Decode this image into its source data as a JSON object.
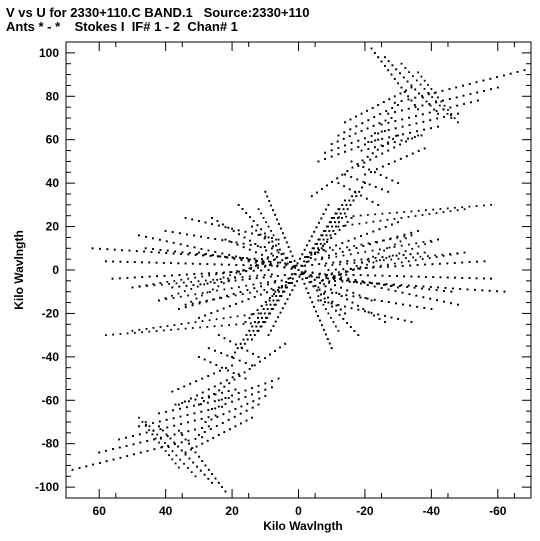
{
  "header": {
    "line1": "V vs U for 2330+110.C BAND.1   Source:2330+110",
    "line2": "Ants * - *    Stokes I  IF# 1 - 2  Chan# 1"
  },
  "chart_data": {
    "type": "scatter",
    "xlabel": "Kilo Wavlngth",
    "ylabel": "Kilo Wavlngth",
    "xlim": [
      70,
      -70
    ],
    "ylim": [
      -105,
      105
    ],
    "xticks": [
      60,
      40,
      20,
      0,
      -20,
      -40,
      -60
    ],
    "yticks": [
      100,
      80,
      60,
      40,
      20,
      0,
      -20,
      -40,
      -60,
      -80,
      -100
    ],
    "xtick_labels": [
      "60",
      "40",
      "20",
      "0",
      "-20",
      "-40",
      "-60"
    ],
    "ytick_labels": [
      "100",
      "80",
      "60",
      "40",
      "20",
      "0",
      "-20",
      "-40",
      "-60",
      "-80",
      "-100"
    ],
    "grid": false,
    "marker_color": "#000000",
    "tracks": [
      {
        "from": [
          -29,
          77
        ],
        "to": [
          -68,
          92
        ]
      },
      {
        "from": [
          -27,
          72
        ],
        "to": [
          -60,
          84
        ]
      },
      {
        "from": [
          -25,
          67
        ],
        "to": [
          -54,
          78
        ]
      },
      {
        "from": [
          -23,
          63
        ],
        "to": [
          -48,
          72
        ]
      },
      {
        "from": [
          -21,
          59
        ],
        "to": [
          -42,
          66
        ]
      },
      {
        "from": [
          -19,
          55
        ],
        "to": [
          -37,
          62
        ]
      },
      {
        "from": [
          -22,
          102
        ],
        "to": [
          -36,
          74
        ]
      },
      {
        "from": [
          -26,
          98
        ],
        "to": [
          -42,
          72
        ]
      },
      {
        "from": [
          -31,
          95
        ],
        "to": [
          -46,
          70
        ]
      },
      {
        "from": [
          -36,
          91
        ],
        "to": [
          -48,
          68
        ]
      },
      {
        "from": [
          -14,
          68
        ],
        "to": [
          -34,
          84
        ]
      },
      {
        "from": [
          -12,
          62
        ],
        "to": [
          -30,
          76
        ]
      },
      {
        "from": [
          -10,
          58
        ],
        "to": [
          -28,
          70
        ]
      },
      {
        "from": [
          -8,
          54
        ],
        "to": [
          -26,
          64
        ]
      },
      {
        "from": [
          -6,
          50
        ],
        "to": [
          -24,
          60
        ]
      },
      {
        "from": [
          -18,
          48
        ],
        "to": [
          -36,
          62
        ]
      },
      {
        "from": [
          -20,
          44
        ],
        "to": [
          -38,
          56
        ]
      },
      {
        "from": [
          -16,
          50
        ],
        "to": [
          -30,
          40
        ]
      },
      {
        "from": [
          -14,
          44
        ],
        "to": [
          -27,
          36
        ]
      },
      {
        "from": [
          -12,
          40
        ],
        "to": [
          -24,
          30
        ]
      },
      {
        "from": [
          -20,
          40
        ],
        "to": [
          -7,
          10
        ]
      },
      {
        "from": [
          -17,
          36
        ],
        "to": [
          -5,
          8
        ]
      },
      {
        "from": [
          -14,
          32
        ],
        "to": [
          -3,
          6
        ]
      },
      {
        "from": [
          -6,
          8
        ],
        "to": [
          -34,
          16
        ]
      },
      {
        "from": [
          -7,
          5
        ],
        "to": [
          -42,
          14
        ]
      },
      {
        "from": [
          -8,
          2
        ],
        "to": [
          -50,
          8
        ]
      },
      {
        "from": [
          -9,
          0
        ],
        "to": [
          -56,
          4
        ]
      },
      {
        "from": [
          -2,
          2
        ],
        "to": [
          -38,
          8
        ]
      },
      {
        "from": [
          -10,
          -2
        ],
        "to": [
          -58,
          -4
        ]
      },
      {
        "from": [
          -11,
          -5
        ],
        "to": [
          -62,
          -10
        ]
      },
      {
        "from": [
          -4,
          -3
        ],
        "to": [
          -46,
          -10
        ]
      },
      {
        "from": [
          -3,
          4
        ],
        "to": [
          -36,
          18
        ]
      },
      {
        "from": [
          -2,
          6
        ],
        "to": [
          -30,
          22
        ]
      },
      {
        "from": [
          -10,
          24
        ],
        "to": [
          -58,
          30
        ]
      },
      {
        "from": [
          -12,
          20
        ],
        "to": [
          -50,
          28
        ]
      },
      {
        "from": [
          0,
          0
        ],
        "to": [
          -12,
          28
        ]
      },
      {
        "from": [
          0,
          0
        ],
        "to": [
          -16,
          24
        ]
      },
      {
        "from": [
          1,
          1
        ],
        "to": [
          -9,
          30
        ]
      },
      {
        "from": [
          0,
          0
        ],
        "to": [
          -30,
          -8
        ]
      },
      {
        "from": [
          0,
          0
        ],
        "to": [
          -22,
          -14
        ]
      },
      {
        "from": [
          0,
          0
        ],
        "to": [
          -14,
          -20
        ]
      },
      {
        "from": [
          0,
          0
        ],
        "to": [
          -10,
          -36
        ]
      },
      {
        "from": [
          0,
          0
        ],
        "to": [
          -18,
          -30
        ]
      },
      {
        "from": [
          0,
          0
        ],
        "to": [
          -26,
          -24
        ]
      },
      {
        "from": [
          -8,
          -10
        ],
        "to": [
          -40,
          -18
        ]
      },
      {
        "from": [
          -6,
          -14
        ],
        "to": [
          -34,
          -24
        ]
      },
      {
        "from": [
          0,
          0
        ],
        "to": [
          -48,
          -16
        ]
      },
      {
        "from": [
          -6,
          -12
        ],
        "to": [
          -12,
          -28
        ]
      },
      {
        "from": [
          0,
          0
        ],
        "to": [
          30,
          8
        ]
      },
      {
        "from": [
          0,
          0
        ],
        "to": [
          22,
          14
        ]
      },
      {
        "from": [
          0,
          0
        ],
        "to": [
          14,
          20
        ]
      },
      {
        "from": [
          0,
          0
        ],
        "to": [
          10,
          36
        ]
      },
      {
        "from": [
          0,
          0
        ],
        "to": [
          18,
          30
        ]
      },
      {
        "from": [
          0,
          0
        ],
        "to": [
          26,
          24
        ]
      },
      {
        "from": [
          8,
          10
        ],
        "to": [
          40,
          18
        ]
      },
      {
        "from": [
          6,
          14
        ],
        "to": [
          34,
          24
        ]
      },
      {
        "from": [
          0,
          0
        ],
        "to": [
          48,
          16
        ]
      },
      {
        "from": [
          6,
          8
        ],
        "to": [
          34,
          -16
        ]
      },
      {
        "from": [
          7,
          5
        ],
        "to": [
          42,
          -14
        ]
      },
      {
        "from": [
          8,
          2
        ],
        "to": [
          50,
          -8
        ]
      },
      {
        "from": [
          9,
          0
        ],
        "to": [
          56,
          -4
        ]
      },
      {
        "from": [
          2,
          -2
        ],
        "to": [
          38,
          -8
        ]
      },
      {
        "from": [
          10,
          2
        ],
        "to": [
          58,
          4
        ]
      },
      {
        "from": [
          11,
          5
        ],
        "to": [
          62,
          10
        ]
      },
      {
        "from": [
          4,
          3
        ],
        "to": [
          46,
          10
        ]
      },
      {
        "from": [
          3,
          -4
        ],
        "to": [
          36,
          -18
        ]
      },
      {
        "from": [
          2,
          -6
        ],
        "to": [
          30,
          -22
        ]
      },
      {
        "from": [
          0,
          0
        ],
        "to": [
          12,
          -28
        ]
      },
      {
        "from": [
          0,
          0
        ],
        "to": [
          16,
          -24
        ]
      },
      {
        "from": [
          -1,
          -1
        ],
        "to": [
          9,
          -30
        ]
      },
      {
        "from": [
          20,
          -40
        ],
        "to": [
          7,
          -10
        ]
      },
      {
        "from": [
          17,
          -36
        ],
        "to": [
          5,
          -8
        ]
      },
      {
        "from": [
          14,
          -32
        ],
        "to": [
          3,
          -6
        ]
      },
      {
        "from": [
          29,
          -77
        ],
        "to": [
          68,
          -92
        ]
      },
      {
        "from": [
          27,
          -72
        ],
        "to": [
          60,
          -84
        ]
      },
      {
        "from": [
          25,
          -67
        ],
        "to": [
          54,
          -78
        ]
      },
      {
        "from": [
          23,
          -63
        ],
        "to": [
          48,
          -72
        ]
      },
      {
        "from": [
          21,
          -59
        ],
        "to": [
          42,
          -66
        ]
      },
      {
        "from": [
          19,
          -55
        ],
        "to": [
          37,
          -62
        ]
      },
      {
        "from": [
          22,
          -102
        ],
        "to": [
          36,
          -74
        ]
      },
      {
        "from": [
          26,
          -98
        ],
        "to": [
          42,
          -72
        ]
      },
      {
        "from": [
          14,
          -68
        ],
        "to": [
          34,
          -84
        ]
      },
      {
        "from": [
          12,
          -62
        ],
        "to": [
          30,
          -76
        ]
      },
      {
        "from": [
          10,
          -58
        ],
        "to": [
          28,
          -70
        ]
      },
      {
        "from": [
          8,
          -54
        ],
        "to": [
          26,
          -64
        ]
      },
      {
        "from": [
          6,
          -50
        ],
        "to": [
          24,
          -60
        ]
      },
      {
        "from": [
          18,
          -48
        ],
        "to": [
          36,
          -62
        ]
      },
      {
        "from": [
          20,
          -44
        ],
        "to": [
          38,
          -56
        ]
      },
      {
        "from": [
          16,
          -50
        ],
        "to": [
          30,
          -40
        ]
      },
      {
        "from": [
          14,
          -44
        ],
        "to": [
          27,
          -36
        ]
      },
      {
        "from": [
          12,
          -40
        ],
        "to": [
          24,
          -30
        ]
      },
      {
        "from": [
          -4,
          34
        ],
        "to": [
          -30,
          62
        ]
      },
      {
        "from": [
          4,
          -34
        ],
        "to": [
          30,
          -62
        ]
      }
    ]
  }
}
